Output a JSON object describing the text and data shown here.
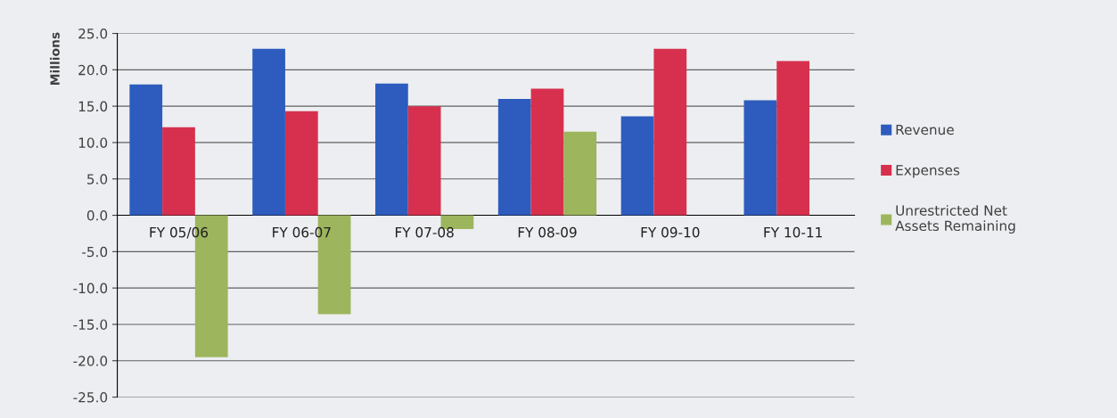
{
  "chart_data": {
    "type": "bar",
    "ylabel": "Millions",
    "categories": [
      "FY 05/06",
      "FY 06-07",
      "FY 07-08",
      "FY 08-09",
      "FY 09-10",
      "FY 10-11"
    ],
    "series": [
      {
        "name": "Revenue",
        "color": "#2d5cbe",
        "values": [
          18.0,
          22.9,
          18.1,
          16.0,
          13.6,
          15.8
        ]
      },
      {
        "name": "Expenses",
        "color": "#d7304e",
        "values": [
          12.1,
          14.3,
          15.0,
          17.4,
          22.9,
          21.2
        ]
      },
      {
        "name": "Unrestricted Net Assets Remaining",
        "color": "#9db55c",
        "values": [
          -19.5,
          -13.6,
          -1.9,
          11.5,
          null,
          null
        ]
      }
    ],
    "ylim": [
      -25,
      25
    ],
    "yticks": [
      {
        "value": -25,
        "label": "-25.0"
      },
      {
        "value": -20,
        "label": "-20.0"
      },
      {
        "value": -15,
        "label": "-15.0"
      },
      {
        "value": -10,
        "label": "-10.0"
      },
      {
        "value": -5,
        "label": "-5.0"
      },
      {
        "value": 0,
        "label": "0.0"
      },
      {
        "value": 5,
        "label": "5.0"
      },
      {
        "value": 10,
        "label": "10.0"
      },
      {
        "value": 15,
        "label": "15.0"
      },
      {
        "value": 20,
        "label": "20.0"
      },
      {
        "value": 25,
        "label": "25.0"
      }
    ],
    "grid": "y",
    "legend": "right"
  }
}
